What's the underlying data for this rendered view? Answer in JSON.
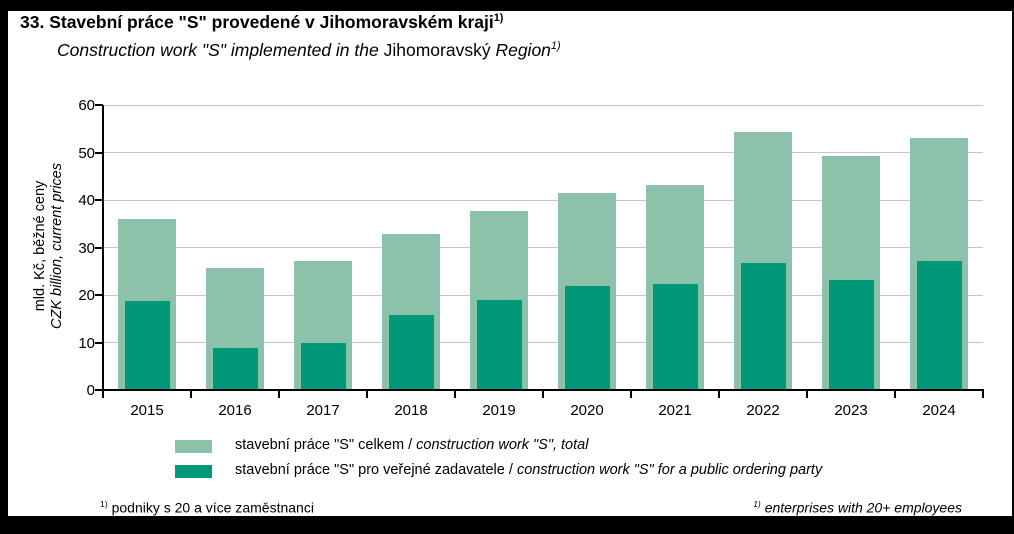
{
  "title": {
    "czech": "33. Stavební práce \"S\" provedené v Jihomoravském kraji",
    "english_italic_1": "Construction work \"S\" implemented in the ",
    "english_upright": "Jihomoravský ",
    "english_italic_2": "Region"
  },
  "y_axis": {
    "label_czech": "mld. Kč, běžné ceny",
    "label_english": "CZK billion, current prices",
    "ticks": [
      0,
      10,
      20,
      30,
      40,
      50,
      60
    ]
  },
  "chart_data": {
    "type": "bar",
    "categories": [
      "2015",
      "2016",
      "2017",
      "2018",
      "2019",
      "2020",
      "2021",
      "2022",
      "2023",
      "2024"
    ],
    "series": [
      {
        "name": "stavební práce \"S\" celkem / construction work \"S\", total",
        "color": "#8bc2a9",
        "values": [
          36.0,
          25.6,
          27.2,
          32.8,
          37.7,
          41.4,
          43.1,
          54.3,
          49.2,
          53.0
        ]
      },
      {
        "name": "stavební práce \"S\" pro veřejné zadavatele / construction work \"S\" for a public ordering party",
        "color": "#009878",
        "values": [
          18.7,
          8.9,
          9.8,
          15.8,
          19.0,
          21.8,
          22.4,
          26.7,
          23.2,
          27.1
        ]
      }
    ],
    "title": "33. Stavební práce \"S\" provedené v Jihomoravském kraji / Construction work \"S\" implemented in the Jihomoravský Region",
    "xlabel": "",
    "ylabel": "mld. Kč, běžné ceny / CZK billion, current prices",
    "ylim": [
      0,
      60
    ],
    "grid": true,
    "legend_position": "bottom"
  },
  "legend": {
    "items": [
      {
        "czech": "stavební práce \"S\" celkem ",
        "slash": "/ ",
        "english": "construction work \"S\", total",
        "color": "#8bc2a9"
      },
      {
        "czech": "stavební práce \"S\" pro veřejné zadavatele ",
        "slash": "/ ",
        "english": "construction work \"S\" for a public ordering party",
        "color": "#009878"
      }
    ]
  },
  "footnotes": {
    "ref": "1)",
    "czech": "podniky s 20 a více zaměstnanci",
    "english": "enterprises with 20+ employees"
  },
  "colors": {
    "bar_total": "#8bc2a9",
    "bar_public": "#009878",
    "gridline": "#c6c6c6",
    "axis": "#000000",
    "frame": "#000000"
  }
}
